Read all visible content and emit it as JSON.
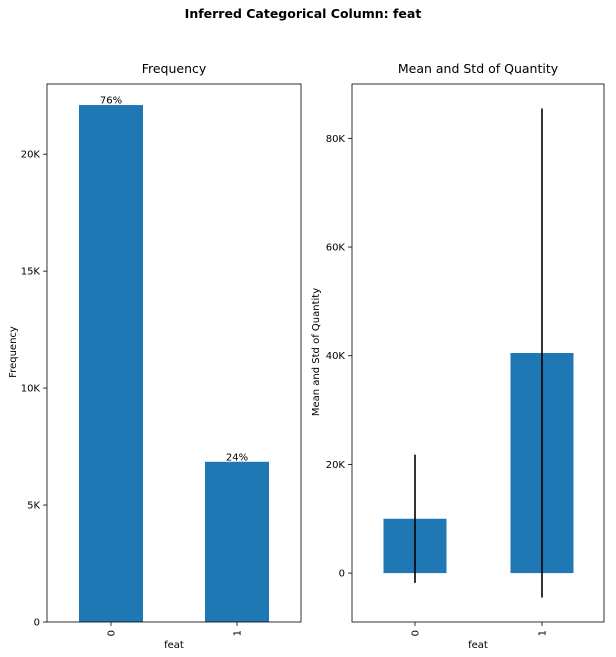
{
  "figure": {
    "suptitle": "Inferred Categorical Column: feat"
  },
  "chart_data": [
    {
      "type": "bar",
      "title": "Frequency",
      "xlabel": "feat",
      "ylabel": "Frequency",
      "categories": [
        "0",
        "1"
      ],
      "values": [
        22100,
        6850
      ],
      "data_labels": [
        "76%",
        "24%"
      ],
      "ylim": [
        0,
        23000
      ],
      "yticks": [
        0,
        5000,
        10000,
        15000,
        20000
      ],
      "ytick_labels": [
        "0",
        "5K",
        "10K",
        "15K",
        "20K"
      ],
      "color": "#1f77b4",
      "grid": false
    },
    {
      "type": "bar",
      "title": "Mean and Std of Quantity",
      "xlabel": "feat",
      "ylabel": "Mean and Std of Quantity",
      "categories": [
        "0",
        "1"
      ],
      "values": [
        10000,
        40500
      ],
      "error": [
        11800,
        45000
      ],
      "ylim": [
        -9000,
        90000
      ],
      "yticks": [
        0,
        20000,
        40000,
        60000,
        80000
      ],
      "ytick_labels": [
        "0",
        "20K",
        "40K",
        "60K",
        "80K"
      ],
      "color": "#1f77b4",
      "error_color": "#000000",
      "grid": false
    }
  ]
}
